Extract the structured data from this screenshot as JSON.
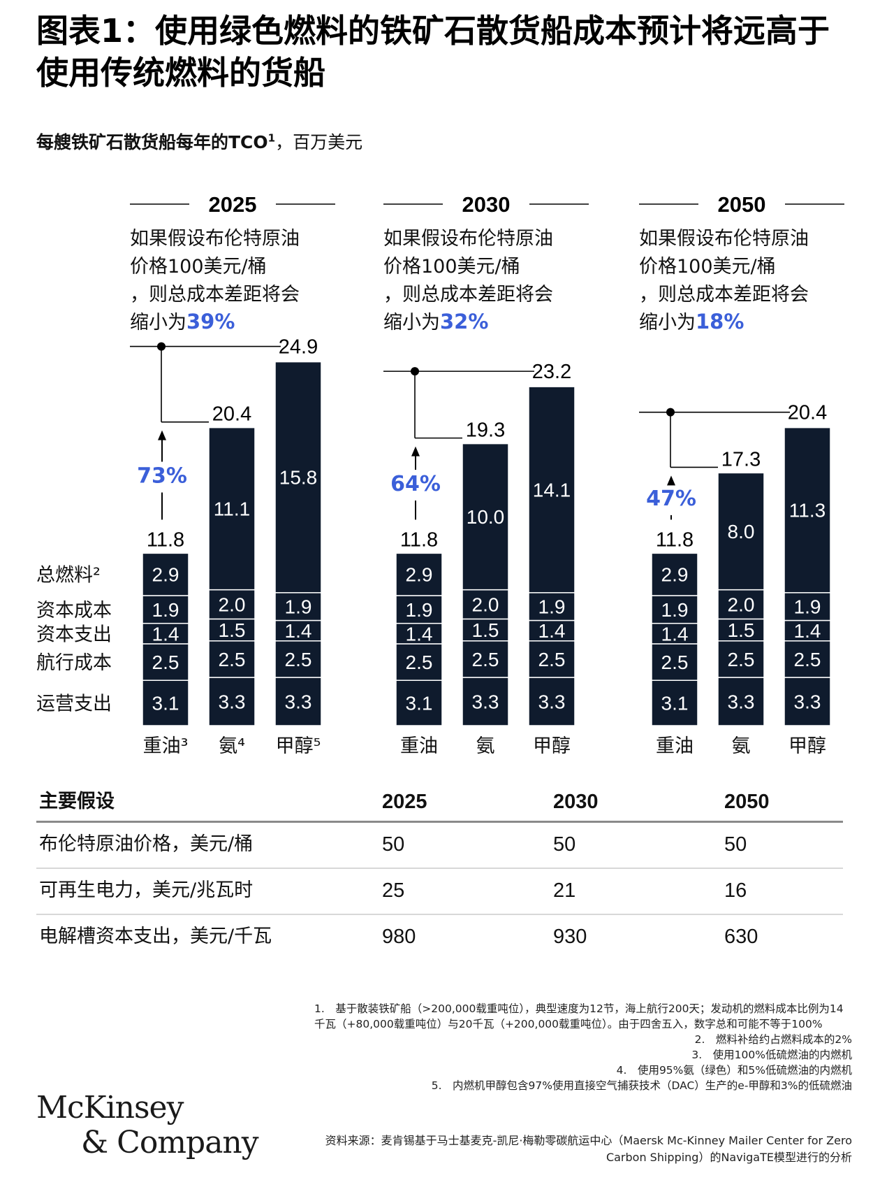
{
  "title": "图表1：使用绿色燃料的铁矿石散货船成本预计将远高于使用传统燃料的货船",
  "subtitle": {
    "main": "每艘铁矿石散货船每年的TCO",
    "sup": "1",
    "unit": "，百万美元"
  },
  "colors": {
    "bar": "#0f1b2d",
    "accent": "#3b5fd9",
    "line": "#000000"
  },
  "row_labels": [
    "总燃料²",
    "资本成本",
    "资本支出",
    "航行成本",
    "运营支出"
  ],
  "chart_data": {
    "type": "bar",
    "stacking": "stacked",
    "segments_bottom_to_top": [
      "运营支出",
      "航行成本",
      "资本支出",
      "资本成本",
      "总燃料"
    ],
    "panels": [
      {
        "year": "2025",
        "note_prefix": "如果假设布伦特原油价格100美元/桶，则总成本差距将会缩小为",
        "note_pct": "39%",
        "pct_label": "73%",
        "categories": [
          "重油³",
          "氨⁴",
          "甲醇⁵"
        ],
        "stacks": [
          [
            3.1,
            2.5,
            1.4,
            1.9,
            2.9
          ],
          [
            3.3,
            2.5,
            1.5,
            2.0,
            11.1
          ],
          [
            3.3,
            2.5,
            1.4,
            1.9,
            15.8
          ]
        ],
        "totals": [
          11.8,
          20.4,
          24.9
        ]
      },
      {
        "year": "2030",
        "note_prefix": "如果假设布伦特原油价格100美元/桶，则总成本差距将会缩小为",
        "note_pct": "32%",
        "pct_label": "64%",
        "categories": [
          "重油",
          "氨",
          "甲醇"
        ],
        "stacks": [
          [
            3.1,
            2.5,
            1.4,
            1.9,
            2.9
          ],
          [
            3.3,
            2.5,
            1.5,
            2.0,
            10.0
          ],
          [
            3.3,
            2.5,
            1.4,
            1.9,
            14.1
          ]
        ],
        "totals": [
          11.8,
          19.3,
          23.2
        ]
      },
      {
        "year": "2050",
        "note_prefix": "如果假设布伦特原油价格100美元/桶，则总成本差距将会缩小为",
        "note_pct": "18%",
        "pct_label": "47%",
        "categories": [
          "重油",
          "氨",
          "甲醇"
        ],
        "stacks": [
          [
            3.1,
            2.5,
            1.4,
            1.9,
            2.9
          ],
          [
            3.3,
            2.5,
            1.5,
            2.0,
            8.0
          ],
          [
            3.3,
            2.5,
            1.4,
            1.9,
            11.3
          ]
        ],
        "totals": [
          11.8,
          17.3,
          20.4
        ]
      }
    ]
  },
  "assumptions": {
    "header": [
      "主要假设",
      "2025",
      "2030",
      "2050"
    ],
    "rows": [
      [
        "布伦特原油价格，美元/桶",
        "50",
        "50",
        "50"
      ],
      [
        "可再生电力，美元/兆瓦时",
        "25",
        "21",
        "16"
      ],
      [
        "电解槽资本支出，美元/千瓦",
        "980",
        "930",
        "630"
      ]
    ]
  },
  "footnotes": [
    "1.　基于散装铁矿船（>200,000载重吨位），典型速度为12节，海上航行200天；发动机的燃料成本比例为14千瓦（+80,000载重吨位）与20千瓦（+200,000载重吨位）。由于四舍五入，数字总和可能不等于100%",
    "2.　燃料补给约占燃料成本的2%",
    "3.　使用100%低硫燃油的内燃机",
    "4.　使用95%氨（绿色）和5%低硫燃油的内燃机",
    "5.　内燃机甲醇包含97%使用直接空气捕获技术（DAC）生产的e-甲醇和3%的低硫燃油"
  ],
  "source": "资料来源：麦肯锡基于马士基麦克-凯尼·梅勒零碳航运中心（Maersk Mc-Kinney Mailer Center for Zero Carbon Shipping）的NavigaTE模型进行的分析",
  "logo": {
    "line1": "McKinsey",
    "line2": "& Company"
  }
}
